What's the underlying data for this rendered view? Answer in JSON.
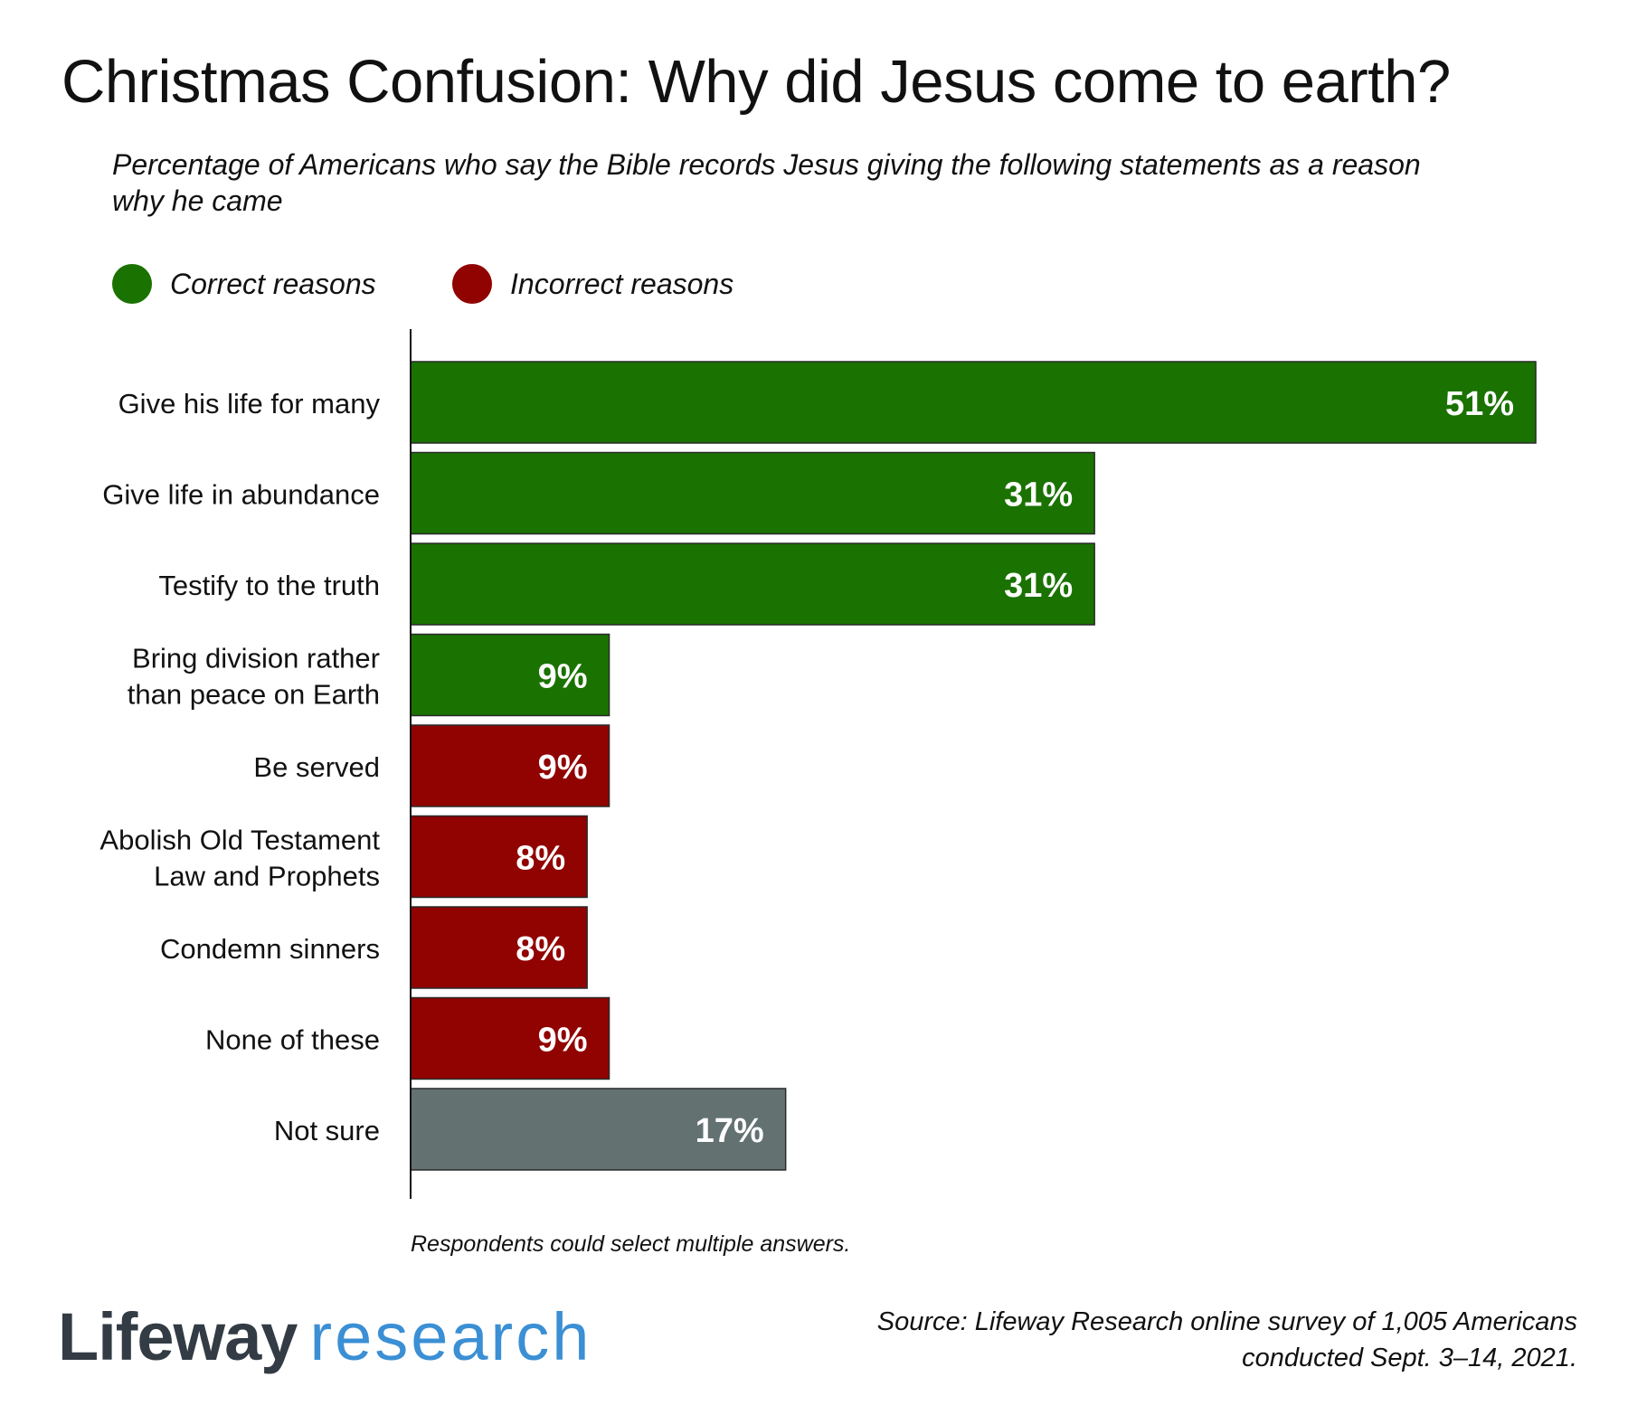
{
  "title": "Christmas Confusion: Why did Jesus come to earth?",
  "subtitle": "Percentage of Americans who say the Bible records Jesus giving the following statements as a reason why he came",
  "legend": [
    {
      "label": "Correct reasons",
      "color": "#1a7200"
    },
    {
      "label": "Incorrect reasons",
      "color": "#900300"
    }
  ],
  "note": "Respondents could select multiple answers.",
  "logo": {
    "word1": "Lifeway",
    "word2": "research"
  },
  "source_line1": "Source: Lifeway Research online survey of 1,005 Americans",
  "source_line2": "conducted Sept. 3–14, 2021.",
  "colors": {
    "correct": "#1a7200",
    "incorrect": "#900300",
    "unsure": "#637171",
    "value_text": "#ffffff"
  },
  "chart_data": {
    "type": "bar",
    "orientation": "horizontal",
    "categories": [
      [
        "Give his life for many"
      ],
      [
        "Give life in abundance"
      ],
      [
        "Testify to the truth"
      ],
      [
        "Bring division rather",
        "than peace on Earth"
      ],
      [
        "Be served"
      ],
      [
        "Abolish Old Testament",
        "Law and Prophets"
      ],
      [
        "Condemn sinners"
      ],
      [
        "None of these"
      ],
      [
        "Not sure"
      ]
    ],
    "values": [
      51,
      31,
      31,
      9,
      9,
      8,
      8,
      9,
      17
    ],
    "value_labels": [
      "51%",
      "31%",
      "31%",
      "9%",
      "9%",
      "8%",
      "8%",
      "9%",
      "17%"
    ],
    "groups": [
      "correct",
      "correct",
      "correct",
      "correct",
      "incorrect",
      "incorrect",
      "incorrect",
      "incorrect",
      "unsure"
    ],
    "xlim": [
      0,
      51
    ],
    "grid": false,
    "legend_position": "top-left"
  }
}
